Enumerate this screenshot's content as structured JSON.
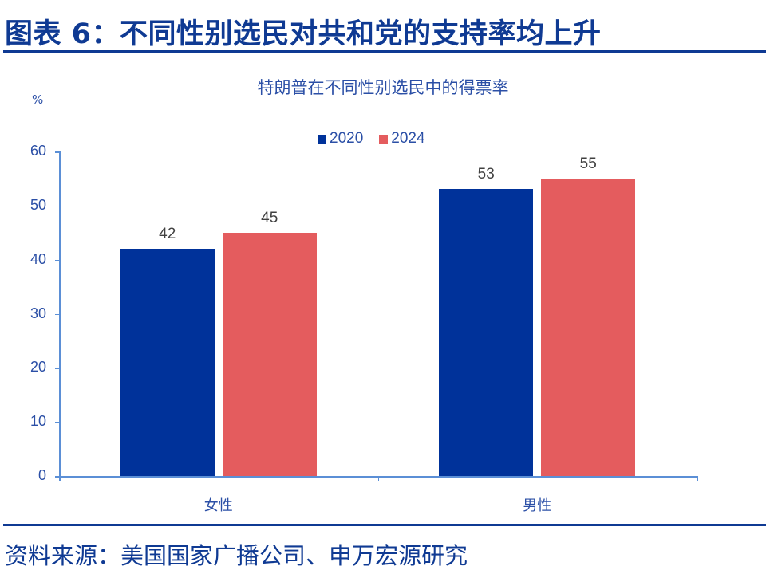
{
  "header": {
    "figure_title": "图表 6：不同性别选民对共和党的支持率均上升"
  },
  "footer": {
    "source": "资料来源：美国国家广播公司、申万宏源研究"
  },
  "colors": {
    "series_2020": "#00329a",
    "series_2024": "#e45c5e",
    "axis": "#5b8fd6",
    "title": "#0f3a93",
    "text": "#2b4fa6"
  },
  "chart_data": {
    "type": "bar",
    "title": "特朗普在不同性别选民中的得票率",
    "unit_label": "%",
    "xlabel": "",
    "ylabel": "%",
    "categories": [
      "女性",
      "男性"
    ],
    "series": [
      {
        "name": "2020",
        "color": "#00329a",
        "values": [
          42,
          53
        ]
      },
      {
        "name": "2024",
        "color": "#e45c5e",
        "values": [
          45,
          55
        ]
      }
    ],
    "ylim": [
      0,
      60
    ],
    "yticks": [
      0,
      10,
      20,
      30,
      40,
      50,
      60
    ],
    "grid": false,
    "legend_position": "top-center",
    "data_labels": true
  }
}
